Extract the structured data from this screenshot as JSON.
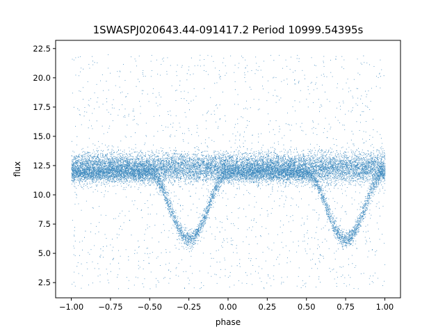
{
  "chart_data": {
    "type": "scatter",
    "title": "1SWASPJ020643.44-091417.2 Period 10999.54395s",
    "xlabel": "phase",
    "ylabel": "flux",
    "xlim": [
      -1.1,
      1.1
    ],
    "ylim": [
      1.2,
      23.2
    ],
    "x_ticks": [
      -1.0,
      -0.75,
      -0.5,
      -0.25,
      0.0,
      0.25,
      0.5,
      0.75,
      1.0
    ],
    "x_tick_labels": [
      "−1.00",
      "−0.75",
      "−0.50",
      "−0.25",
      "0.00",
      "0.25",
      "0.50",
      "0.75",
      "1.00"
    ],
    "y_ticks": [
      2.5,
      5.0,
      7.5,
      10.0,
      12.5,
      15.0,
      17.5,
      20.0,
      22.5
    ],
    "y_tick_labels": [
      "2.5",
      "5.0",
      "7.5",
      "10.0",
      "12.5",
      "15.0",
      "17.5",
      "20.0",
      "22.5"
    ],
    "grid": false,
    "marker_color": "#1f77b4",
    "phase_range": [
      -1.0,
      1.0
    ],
    "features": {
      "main_band_flux": [
        11.0,
        13.7
      ],
      "upper_band_center": 12.6,
      "lower_band_center": 10.9,
      "eclipse_minima": [
        {
          "phase": -0.25,
          "flux": 6.2
        },
        {
          "phase": 0.75,
          "flux": 6.2
        }
      ],
      "eclipse_maxima_phases": [
        -1.0,
        -0.5,
        0.25,
        0.5,
        1.0
      ],
      "scatter_flux_range": [
        2.0,
        22.0
      ]
    }
  }
}
